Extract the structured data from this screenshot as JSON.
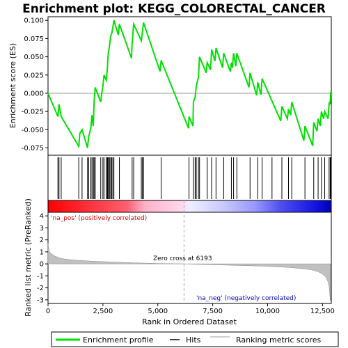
{
  "chart_data": {
    "title": "Enrichment plot: KEGG_COLORECTAL_CANCER",
    "colors": {
      "es_line": "#00e000",
      "hits": "#000000",
      "metric_fill": "#c0c0c0",
      "pos_label": "#e00000",
      "neg_label": "#0000c0",
      "zero_line": "#aaaaaa"
    },
    "es_panel": {
      "type": "line",
      "ylabel": "Enrichment score (ES)",
      "ylim": [
        -0.085,
        0.105
      ],
      "xlim": [
        0,
        12900
      ],
      "yticks": [
        -0.075,
        -0.05,
        -0.025,
        0.0,
        0.025,
        0.05,
        0.075,
        0.1
      ],
      "ytick_labels": [
        "-0.075",
        "-0.050",
        "-0.025",
        "0.000",
        "0.025",
        "0.050",
        "0.075",
        "0.100"
      ],
      "series": [
        {
          "x": [
            0,
            450,
            500,
            600,
            1400,
            1450,
            1550,
            1800,
            1820,
            1850,
            1950,
            2000,
            2060,
            2100,
            2150,
            2400,
            2450,
            2500,
            2550,
            2650,
            2700,
            2720,
            2750,
            2800,
            2850,
            2900,
            2950,
            3000,
            3200,
            3250,
            3800,
            3830,
            3900,
            4250,
            4300,
            4350,
            5100,
            5150,
            6400,
            6420,
            6600,
            6620,
            6700,
            6750,
            6850,
            6900,
            7200,
            7250,
            7400,
            7450,
            7600,
            7650,
            7950,
            8000,
            8300,
            8350,
            8400,
            8450,
            8550,
            8600,
            9150,
            9200,
            9500,
            9550,
            9700,
            9750,
            10600,
            10650,
            10900,
            10950,
            11050,
            11100,
            11650,
            11700,
            12050,
            12100,
            12250,
            12300,
            12400,
            12450,
            12550,
            12600,
            12750,
            12800,
            12820,
            12850,
            12870
          ],
          "y": [
            0.0,
            -0.032,
            -0.015,
            -0.032,
            -0.073,
            -0.055,
            -0.05,
            -0.075,
            -0.068,
            -0.06,
            -0.048,
            -0.03,
            -0.045,
            -0.01,
            0.008,
            -0.012,
            0.0,
            0.01,
            0.025,
            0.018,
            0.032,
            0.045,
            0.056,
            0.065,
            0.078,
            0.082,
            0.09,
            0.1,
            0.08,
            0.095,
            0.048,
            0.068,
            0.095,
            0.072,
            0.085,
            0.097,
            0.03,
            0.045,
            -0.048,
            -0.032,
            -0.045,
            -0.012,
            -0.005,
            0.01,
            0.022,
            0.05,
            0.028,
            0.042,
            0.032,
            0.06,
            0.044,
            0.062,
            0.035,
            0.055,
            0.03,
            0.042,
            0.035,
            0.055,
            0.037,
            0.055,
            0.008,
            0.028,
            -0.003,
            0.015,
            -0.002,
            0.02,
            -0.038,
            -0.018,
            -0.035,
            -0.022,
            -0.03,
            -0.012,
            -0.065,
            -0.045,
            -0.072,
            -0.04,
            -0.052,
            -0.035,
            -0.045,
            -0.025,
            -0.035,
            -0.025,
            -0.035,
            -0.015,
            -0.012,
            -0.015,
            0.002
          ]
        }
      ]
    },
    "hits_panel": {
      "type": "scatter",
      "hits": [
        450,
        500,
        600,
        1400,
        1550,
        1800,
        1850,
        1950,
        2000,
        2060,
        2100,
        2150,
        2400,
        2500,
        2550,
        2650,
        2700,
        2720,
        2750,
        2800,
        2850,
        2900,
        2950,
        3000,
        3250,
        3830,
        3900,
        4250,
        4300,
        4350,
        5150,
        6420,
        6620,
        6700,
        6750,
        6850,
        6900,
        7250,
        7450,
        7650,
        8000,
        8350,
        8450,
        8600,
        9200,
        9550,
        9750,
        10200,
        10650,
        10950,
        11100,
        11700,
        12100,
        12300,
        12450,
        12600,
        12800,
        12850,
        12870
      ]
    },
    "metric_panel": {
      "type": "area",
      "ylabel": "Ranked list metric (PreRanked)",
      "xlabel": "Rank in Ordered Dataset",
      "ylim": [
        -3.3,
        4.3
      ],
      "yticks": [
        -3,
        -2,
        -1,
        0,
        1,
        2,
        3,
        4
      ],
      "ytick_labels": [
        "-3",
        "-2",
        "-1",
        "0",
        "1",
        "2",
        "3",
        "4"
      ],
      "xticks": [
        0,
        2500,
        5000,
        7500,
        10000,
        12500
      ],
      "xtick_labels": [
        "0",
        "2,500",
        "5,000",
        "7,500",
        "10,000",
        "12,500"
      ],
      "x": [
        0,
        30,
        80,
        150,
        300,
        600,
        1000,
        2000,
        3000,
        4000,
        5000,
        6193,
        7000,
        8000,
        9000,
        10000,
        11000,
        11500,
        12000,
        12300,
        12500,
        12650,
        12750,
        12800,
        12830,
        12850,
        12870
      ],
      "y": [
        1.7,
        1.25,
        1.0,
        0.85,
        0.65,
        0.45,
        0.35,
        0.22,
        0.15,
        0.08,
        0.03,
        0.0,
        -0.05,
        -0.1,
        -0.15,
        -0.2,
        -0.3,
        -0.38,
        -0.5,
        -0.65,
        -0.85,
        -1.1,
        -1.5,
        -1.9,
        -2.5,
        -3.0,
        -3.1
      ],
      "zero_cross_label": "Zero cross at 6193",
      "pos_label": "'na_pos' (positively correlated)",
      "neg_label": "'na_neg' (negatively correlated)"
    },
    "legend": [
      {
        "label": "Enrichment profile",
        "kind": "line",
        "color": "#00e000"
      },
      {
        "label": "Hits",
        "kind": "line",
        "color": "#000000"
      },
      {
        "label": "Ranking metric scores",
        "kind": "line",
        "color": "#c0c0c0"
      }
    ]
  }
}
